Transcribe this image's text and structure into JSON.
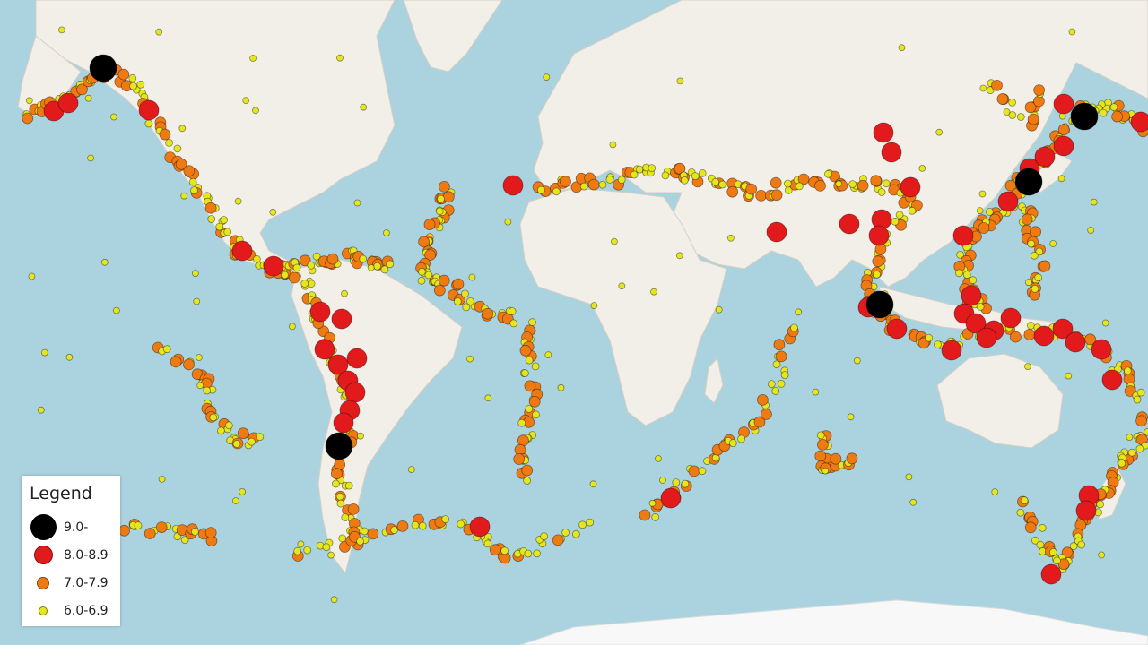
{
  "legend": {
    "title": "Legend",
    "items": [
      {
        "label": "9.0-",
        "color": "#000000",
        "size": "large"
      },
      {
        "label": "8.0-8.9",
        "color": "#e31a1c",
        "size": "medium"
      },
      {
        "label": "7.0-7.9",
        "color": "#f07a12",
        "size": "small"
      },
      {
        "label": "6.0-6.9",
        "color": "#e6e61e",
        "size": "tiny"
      }
    ]
  },
  "colors": {
    "ocean": "#aad3df",
    "land": "#f2efe9",
    "mag9": "#000000",
    "mag8": "#e31a1c",
    "mag7": "#f07a12",
    "mag6": "#e6e61e"
  }
}
